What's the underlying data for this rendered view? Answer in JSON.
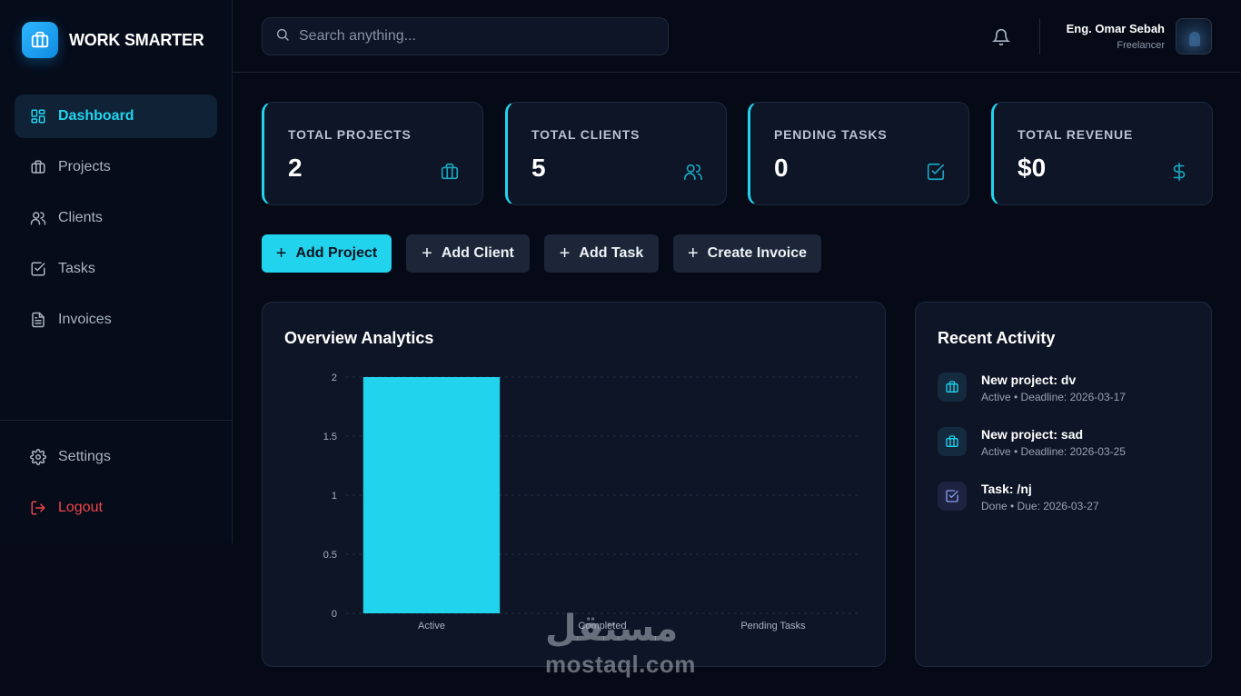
{
  "brand": {
    "name": "WORK SMARTER"
  },
  "sidebar": {
    "items": [
      {
        "label": "Dashboard",
        "icon": "dashboard-grid-icon",
        "active": true
      },
      {
        "label": "Projects",
        "icon": "briefcase-icon"
      },
      {
        "label": "Clients",
        "icon": "users-icon"
      },
      {
        "label": "Tasks",
        "icon": "check-square-icon"
      },
      {
        "label": "Invoices",
        "icon": "file-text-icon"
      }
    ],
    "bottom": [
      {
        "label": "Settings",
        "icon": "gear-icon"
      },
      {
        "label": "Logout",
        "icon": "logout-icon"
      }
    ]
  },
  "search": {
    "placeholder": "Search anything..."
  },
  "user": {
    "name": "Eng. Omar Sebah",
    "role": "Freelancer"
  },
  "stats": [
    {
      "label": "TOTAL PROJECTS",
      "value": "2",
      "icon": "briefcase-icon"
    },
    {
      "label": "TOTAL CLIENTS",
      "value": "5",
      "icon": "users-icon"
    },
    {
      "label": "PENDING TASKS",
      "value": "0",
      "icon": "check-square-icon"
    },
    {
      "label": "TOTAL REVENUE",
      "value": "$0",
      "icon": "dollar-icon"
    }
  ],
  "actions": [
    {
      "label": "Add Project",
      "primary": true
    },
    {
      "label": "Add Client"
    },
    {
      "label": "Add Task"
    },
    {
      "label": "Create Invoice"
    }
  ],
  "analytics": {
    "title": "Overview Analytics"
  },
  "chart_data": {
    "type": "bar",
    "categories": [
      "Active",
      "Completed",
      "Pending Tasks"
    ],
    "values": [
      2,
      0,
      0
    ],
    "ylim": [
      0,
      2
    ],
    "yticks": [
      "0",
      "0.5",
      "1",
      "1.5",
      "2"
    ],
    "grid": true,
    "bar_color": "#22d3ee"
  },
  "recent": {
    "title": "Recent Activity",
    "items": [
      {
        "title": "New project: dv",
        "meta": "Active • Deadline: 2026-03-17",
        "icon": "briefcase-icon"
      },
      {
        "title": "New project: sad",
        "meta": "Active • Deadline: 2026-03-25",
        "icon": "briefcase-icon"
      },
      {
        "title": "Task: /nj",
        "meta": "Done • Due: 2026-03-27",
        "icon": "check-square-icon"
      }
    ]
  },
  "watermark": {
    "arabic": "مستقل",
    "latin": "mostaql.com"
  },
  "colors": {
    "accent": "#22d3ee",
    "background": "#050a16",
    "panel": "#0d1526",
    "danger": "#f0444b"
  }
}
